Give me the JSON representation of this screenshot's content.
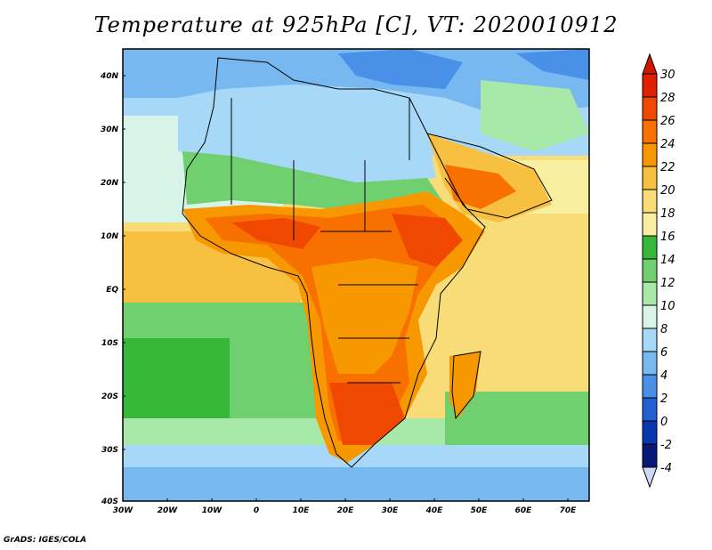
{
  "title": "Temperature at 925hPa [C], VT: 2020010912",
  "credit": "GrADS: IGES/COLA",
  "map": {
    "lon_labels": [
      "30W",
      "20W",
      "10W",
      "0",
      "10E",
      "20E",
      "30E",
      "40E",
      "50E",
      "60E",
      "70E"
    ],
    "lat_labels": [
      "40N",
      "30N",
      "20N",
      "10N",
      "EQ",
      "10S",
      "20S",
      "30S",
      "40S"
    ]
  },
  "colorbar": {
    "levels": [
      "30",
      "28",
      "26",
      "24",
      "22",
      "20",
      "18",
      "16",
      "14",
      "12",
      "10",
      "8",
      "6",
      "4",
      "2",
      "0",
      "-2",
      "-4"
    ],
    "colors": [
      "#e02000",
      "#f04800",
      "#f87000",
      "#f89800",
      "#f8c040",
      "#f8dc78",
      "#f8f0a0",
      "#38b838",
      "#70d070",
      "#a8e8a8",
      "#d8f4e8",
      "#a8d8f8",
      "#78b8f0",
      "#4890e8",
      "#2060d0",
      "#0838b0",
      "#081878",
      "#c0c8f0"
    ],
    "top_color": "#d01800",
    "bottom_color": "#d0d8f8"
  }
}
